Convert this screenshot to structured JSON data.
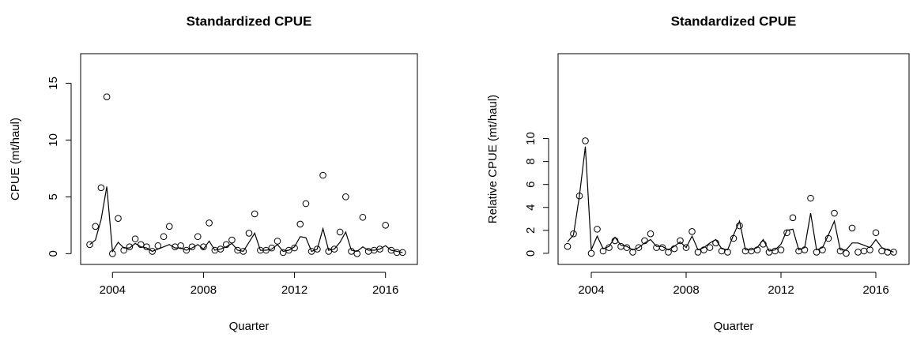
{
  "chart_data": [
    {
      "type": "line",
      "title": "Standardized CPUE",
      "x_label": "Quarter",
      "y_label": "CPUE (mt/haul)",
      "x": [
        2003,
        2003.25,
        2003.5,
        2003.75,
        2004,
        2004.25,
        2004.5,
        2004.75,
        2005,
        2005.25,
        2005.5,
        2005.75,
        2006,
        2006.25,
        2006.5,
        2006.75,
        2007,
        2007.25,
        2007.5,
        2007.75,
        2008,
        2008.25,
        2008.5,
        2008.75,
        2009,
        2009.25,
        2009.5,
        2009.75,
        2010,
        2010.25,
        2010.5,
        2010.75,
        2011,
        2011.25,
        2011.5,
        2011.75,
        2012,
        2012.25,
        2012.5,
        2012.75,
        2013,
        2013.25,
        2013.5,
        2013.75,
        2014,
        2014.25,
        2014.5,
        2014.75,
        2015,
        2015.25,
        2015.5,
        2015.75,
        2016,
        2016.25,
        2016.5,
        2016.75
      ],
      "series": [
        {
          "style": "points",
          "color": "#000000",
          "values": [
            0.8,
            2.4,
            5.8,
            13.8,
            0.0,
            3.1,
            0.3,
            0.6,
            1.3,
            0.8,
            0.6,
            0.2,
            0.7,
            1.5,
            2.4,
            0.6,
            0.7,
            0.3,
            0.6,
            1.5,
            0.6,
            2.7,
            0.3,
            0.4,
            0.8,
            1.2,
            0.3,
            0.2,
            1.8,
            3.5,
            0.3,
            0.3,
            0.5,
            1.1,
            0.1,
            0.3,
            0.5,
            2.6,
            4.4,
            0.2,
            0.4,
            6.9,
            0.2,
            0.4,
            1.9,
            5.0,
            0.2,
            0.0,
            3.2,
            0.2,
            0.3,
            0.4,
            2.5,
            0.3,
            0.1,
            0.1
          ]
        },
        {
          "style": "line",
          "color": "#000000",
          "values": [
            0.8,
            1.2,
            3.0,
            5.9,
            0.2,
            1.0,
            0.5,
            0.5,
            0.9,
            0.6,
            0.5,
            0.2,
            0.4,
            0.6,
            0.8,
            0.5,
            0.5,
            0.3,
            0.5,
            0.8,
            0.4,
            1.1,
            0.3,
            0.4,
            0.6,
            0.9,
            0.3,
            0.2,
            1.0,
            1.8,
            0.3,
            0.3,
            0.4,
            0.8,
            0.2,
            0.3,
            0.6,
            1.5,
            1.4,
            0.2,
            0.4,
            2.2,
            0.3,
            0.4,
            1.0,
            1.9,
            0.3,
            0.2,
            0.6,
            0.3,
            0.3,
            0.4,
            0.7,
            0.3,
            0.2,
            0.1
          ]
        }
      ],
      "xlim": [
        2002.6,
        2017.4
      ],
      "xticks": [
        2004,
        2008,
        2012,
        2016
      ],
      "ylim": [
        -0.95,
        17.6
      ],
      "yticks": [
        0,
        5,
        10,
        15
      ],
      "grid": false
    },
    {
      "type": "line",
      "title": "Standardized CPUE",
      "x_label": "Quarter",
      "y_label": "Relative CPUE (mt/haul)",
      "x": [
        2003,
        2003.25,
        2003.5,
        2003.75,
        2004,
        2004.25,
        2004.5,
        2004.75,
        2005,
        2005.25,
        2005.5,
        2005.75,
        2006,
        2006.25,
        2006.5,
        2006.75,
        2007,
        2007.25,
        2007.5,
        2007.75,
        2008,
        2008.25,
        2008.5,
        2008.75,
        2009,
        2009.25,
        2009.5,
        2009.75,
        2010,
        2010.25,
        2010.5,
        2010.75,
        2011,
        2011.25,
        2011.5,
        2011.75,
        2012,
        2012.25,
        2012.5,
        2012.75,
        2013,
        2013.25,
        2013.5,
        2013.75,
        2014,
        2014.25,
        2014.5,
        2014.75,
        2015,
        2015.25,
        2015.5,
        2015.75,
        2016,
        2016.25,
        2016.5,
        2016.75
      ],
      "series": [
        {
          "style": "points",
          "color": "#000000",
          "values": [
            0.6,
            1.7,
            5.0,
            9.8,
            0.0,
            2.1,
            0.2,
            0.5,
            1.1,
            0.6,
            0.5,
            0.1,
            0.5,
            1.1,
            1.7,
            0.5,
            0.5,
            0.1,
            0.4,
            1.1,
            0.5,
            1.9,
            0.1,
            0.3,
            0.5,
            0.9,
            0.2,
            0.1,
            1.3,
            2.4,
            0.2,
            0.2,
            0.3,
            0.8,
            0.1,
            0.2,
            0.3,
            1.8,
            3.1,
            0.2,
            0.3,
            4.8,
            0.1,
            0.3,
            1.3,
            3.5,
            0.2,
            0.0,
            2.2,
            0.1,
            0.2,
            0.3,
            1.8,
            0.2,
            0.1,
            0.1
          ]
        },
        {
          "style": "line",
          "color": "#000000",
          "values": [
            1.0,
            1.6,
            5.0,
            9.3,
            0.3,
            1.5,
            0.4,
            0.6,
            1.4,
            0.7,
            0.6,
            0.3,
            0.5,
            0.9,
            1.2,
            0.6,
            0.6,
            0.3,
            0.6,
            1.0,
            0.5,
            1.5,
            0.3,
            0.5,
            0.9,
            1.2,
            0.4,
            0.3,
            1.6,
            2.8,
            0.3,
            0.3,
            0.5,
            1.2,
            0.2,
            0.3,
            0.8,
            2.0,
            2.1,
            0.3,
            0.5,
            3.5,
            0.3,
            0.5,
            1.6,
            2.8,
            0.3,
            0.3,
            0.9,
            0.9,
            0.7,
            0.5,
            1.2,
            0.5,
            0.3,
            0.1
          ]
        }
      ],
      "xlim": [
        2002.6,
        2017.4
      ],
      "xticks": [
        2004,
        2008,
        2012,
        2016
      ],
      "ylim": [
        -0.97,
        17.4
      ],
      "yticks": [
        0,
        2,
        4,
        6,
        8,
        10
      ],
      "grid": false
    }
  ]
}
